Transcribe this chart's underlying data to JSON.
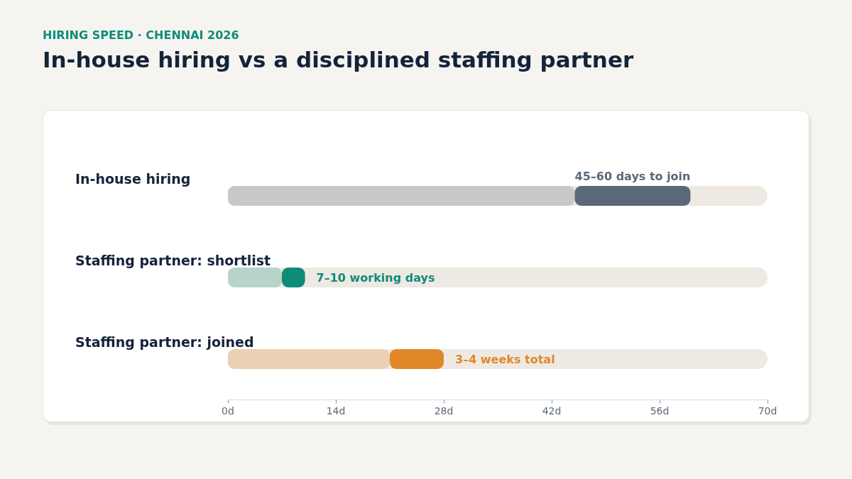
{
  "chart_data": {
    "type": "bar",
    "orientation": "horizontal",
    "stacked": true,
    "subtitle": "HIRING SPEED · CHENNAI 2026",
    "title": "In-house hiring vs a disciplined staffing partner",
    "categories": [
      "In-house hiring",
      "Staffing partner: shortlist",
      "Staffing partner: joined"
    ],
    "series": [
      {
        "colors": [
          "#c8c8c8",
          "#b7d4c9",
          "#ebd0b4"
        ],
        "values": [
          45,
          7,
          21
        ]
      },
      {
        "colors": [
          "#5b6878",
          "#0e8c7a",
          "#e0872a"
        ],
        "values": [
          15,
          3,
          7
        ],
        "value_labels": [
          "45–60 days to join",
          "7–10 working days",
          "3–4 weeks total"
        ]
      }
    ],
    "xlim": [
      0,
      70
    ],
    "xticks": [
      {
        "value": 0,
        "label": "0d"
      },
      {
        "value": 14,
        "label": "14d"
      },
      {
        "value": 28,
        "label": "28d"
      },
      {
        "value": 42,
        "label": "42d"
      },
      {
        "value": 56,
        "label": "56d"
      },
      {
        "value": 70,
        "label": "70d"
      }
    ],
    "grid": false
  }
}
